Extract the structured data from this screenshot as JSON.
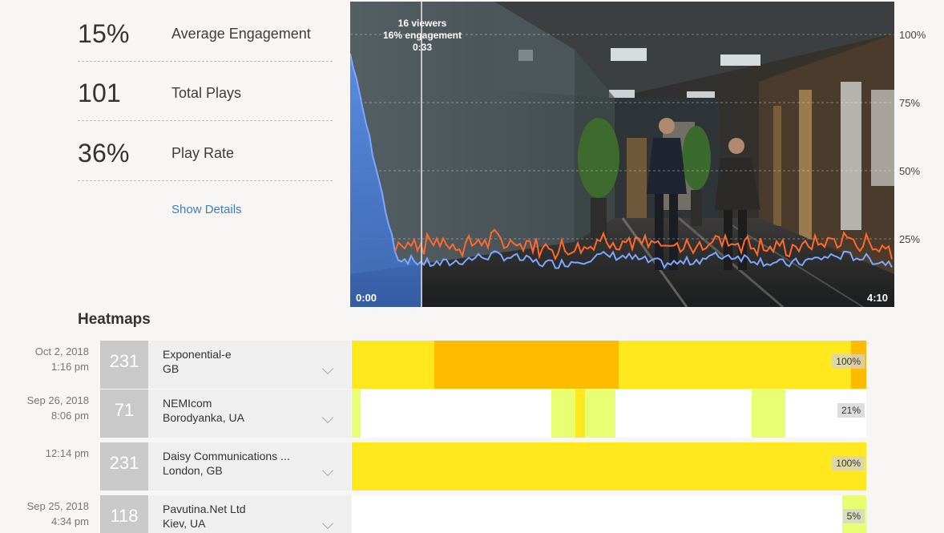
{
  "stats": [
    {
      "value": "15%",
      "label": "Average Engagement"
    },
    {
      "value": "101",
      "label": "Total Plays"
    },
    {
      "value": "36%",
      "label": "Play Rate"
    }
  ],
  "show_details": "Show Details",
  "video": {
    "start_time": "0:00",
    "end_time": "4:10",
    "cursor": {
      "viewers": "16 viewers",
      "engagement": "16% engagement",
      "time": "0:33"
    },
    "y_labels": [
      "100%",
      "75%",
      "50%",
      "25%"
    ],
    "colors": {
      "engagement_line": "#ff6a2c",
      "rewatch_line": "#7ea6ff",
      "fill": "#4a7fd6"
    }
  },
  "heatmaps": {
    "title": "Heatmaps",
    "rows": [
      {
        "date": "Oct 2, 2018",
        "time": "1:16 pm",
        "count": "231",
        "org": "Exponential-e",
        "loc": "GB",
        "percent": "100%"
      },
      {
        "date": "Sep 26, 2018",
        "time": "8:06 pm",
        "count": "71",
        "org": "NEMIcom",
        "loc": "Borodyanka, UA",
        "percent": "21%"
      },
      {
        "date": "",
        "time": "12:14 pm",
        "count": "231",
        "org": "Daisy Communications ...",
        "loc": "London, GB",
        "percent": "100%"
      },
      {
        "date": "Sep 25, 2018",
        "time": "4:34 pm",
        "count": "118",
        "org": "Pavutina.Net Ltd",
        "loc": "Kiev, UA",
        "percent": "5%"
      }
    ]
  }
}
